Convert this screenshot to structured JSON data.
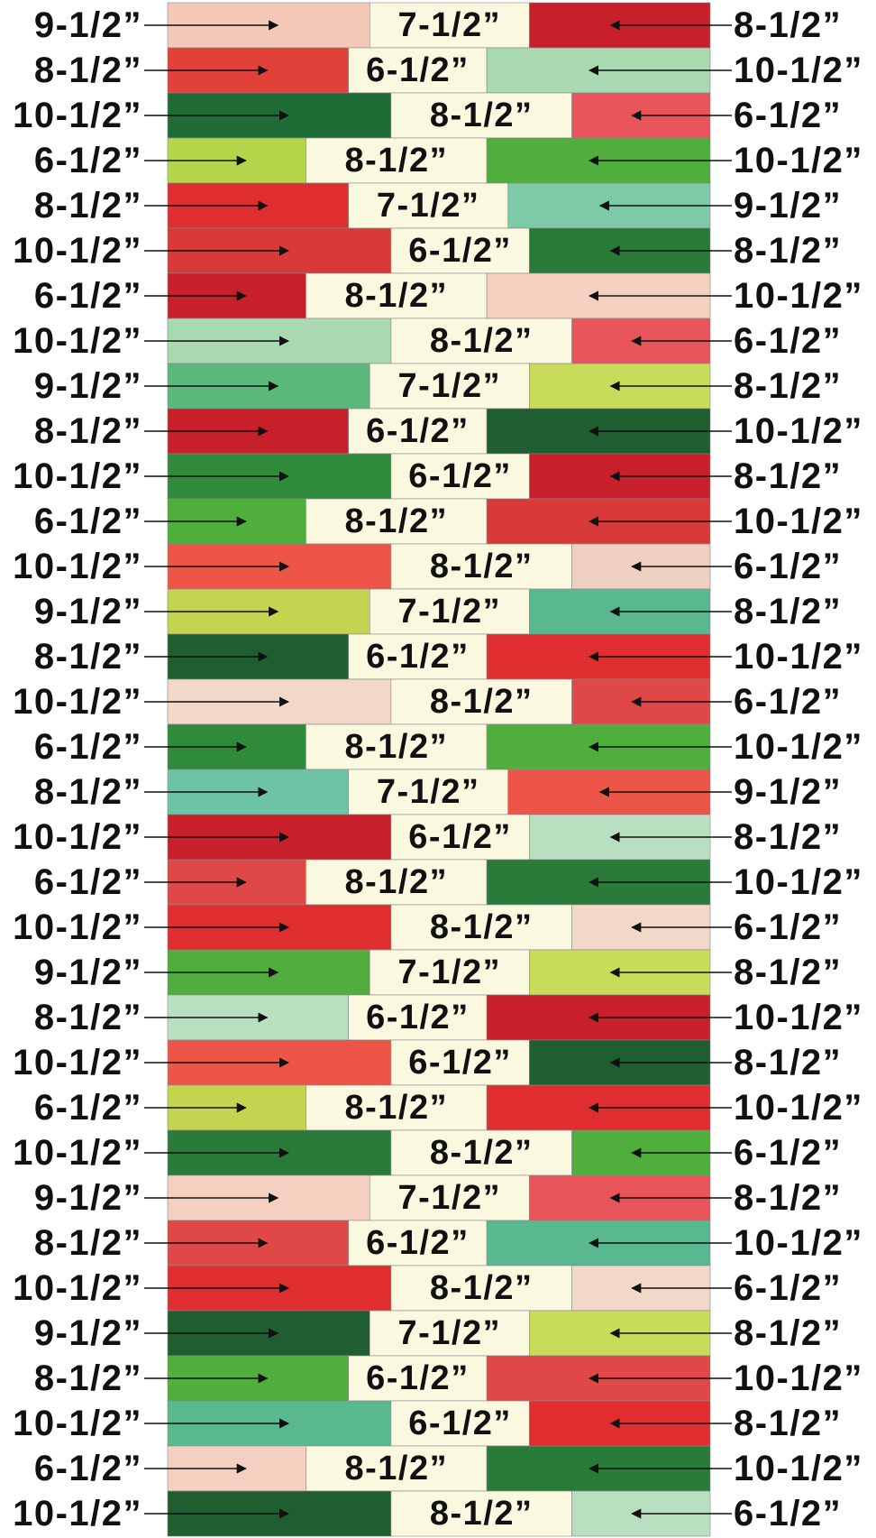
{
  "rows": [
    {
      "left": "9-1/2”",
      "middle": "7-1/2”",
      "right": "8-1/2”"
    },
    {
      "left": "8-1/2”",
      "middle": "6-1/2”",
      "right": "10-1/2”"
    },
    {
      "left": "10-1/2”",
      "middle": "8-1/2”",
      "right": "6-1/2”"
    },
    {
      "left": "6-1/2”",
      "middle": "8-1/2”",
      "right": "10-1/2”"
    },
    {
      "left": "8-1/2”",
      "middle": "7-1/2”",
      "right": "9-1/2”"
    },
    {
      "left": "10-1/2”",
      "middle": "6-1/2”",
      "right": "8-1/2”"
    },
    {
      "left": "6-1/2”",
      "middle": "8-1/2”",
      "right": "10-1/2”"
    },
    {
      "left": "10-1/2”",
      "middle": "8-1/2”",
      "right": "6-1/2”"
    },
    {
      "left": "9-1/2”",
      "middle": "7-1/2”",
      "right": "8-1/2”"
    },
    {
      "left": "8-1/2”",
      "middle": "6-1/2”",
      "right": "10-1/2”"
    },
    {
      "left": "10-1/2”",
      "middle": "6-1/2”",
      "right": "8-1/2”"
    },
    {
      "left": "6-1/2”",
      "middle": "8-1/2”",
      "right": "10-1/2”"
    },
    {
      "left": "10-1/2”",
      "middle": "8-1/2”",
      "right": "6-1/2”"
    },
    {
      "left": "9-1/2”",
      "middle": "7-1/2”",
      "right": "8-1/2”"
    },
    {
      "left": "8-1/2”",
      "middle": "6-1/2”",
      "right": "10-1/2”"
    },
    {
      "left": "10-1/2”",
      "middle": "8-1/2”",
      "right": "6-1/2”"
    },
    {
      "left": "6-1/2”",
      "middle": "8-1/2”",
      "right": "10-1/2”"
    },
    {
      "left": "8-1/2”",
      "middle": "7-1/2”",
      "right": "9-1/2”"
    },
    {
      "left": "10-1/2”",
      "middle": "6-1/2”",
      "right": "8-1/2”"
    },
    {
      "left": "6-1/2”",
      "middle": "8-1/2”",
      "right": "10-1/2”"
    },
    {
      "left": "10-1/2”",
      "middle": "8-1/2”",
      "right": "6-1/2”"
    },
    {
      "left": "9-1/2”",
      "middle": "7-1/2”",
      "right": "8-1/2”"
    },
    {
      "left": "8-1/2”",
      "middle": "6-1/2”",
      "right": "10-1/2”"
    },
    {
      "left": "10-1/2”",
      "middle": "6-1/2”",
      "right": "8-1/2”"
    },
    {
      "left": "6-1/2”",
      "middle": "8-1/2”",
      "right": "10-1/2”"
    },
    {
      "left": "10-1/2”",
      "middle": "8-1/2”",
      "right": "6-1/2”"
    },
    {
      "left": "9-1/2”",
      "middle": "7-1/2”",
      "right": "8-1/2”"
    },
    {
      "left": "8-1/2”",
      "middle": "6-1/2”",
      "right": "10-1/2”"
    },
    {
      "left": "10-1/2”",
      "middle": "8-1/2”",
      "right": "6-1/2”"
    },
    {
      "left": "9-1/2”",
      "middle": "7-1/2”",
      "right": "8-1/2”"
    },
    {
      "left": "8-1/2”",
      "middle": "6-1/2”",
      "right": "10-1/2”"
    },
    {
      "left": "10-1/2”",
      "middle": "6-1/2”",
      "right": "8-1/2”"
    },
    {
      "left": "6-1/2”",
      "middle": "8-1/2”",
      "right": "10-1/2”"
    },
    {
      "left": "10-1/2”",
      "middle": "8-1/2”",
      "right": "6-1/2”"
    }
  ]
}
